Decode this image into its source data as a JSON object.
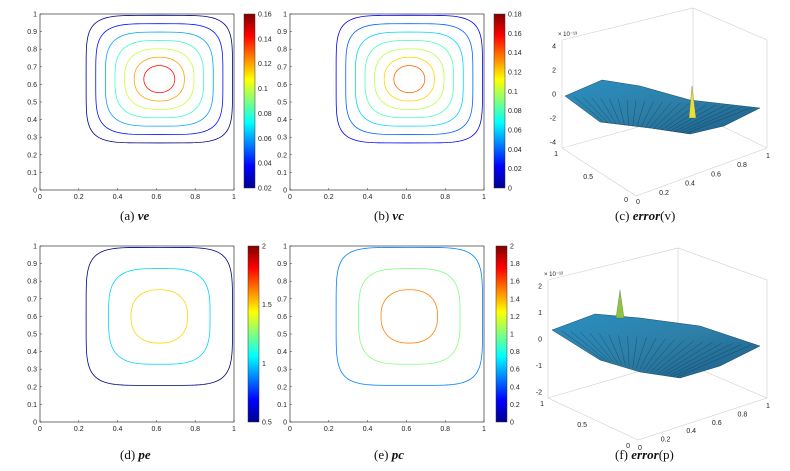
{
  "figure": {
    "panels": [
      {
        "id": "a",
        "type": "contour",
        "caption_label": "(a)",
        "caption_var": "ve",
        "caption_suffix": "",
        "x_ticks": [
          "0",
          "0.2",
          "0.4",
          "0.6",
          "0.8",
          "1"
        ],
        "y_ticks": [
          "0",
          "0.1",
          "0.2",
          "0.3",
          "0.4",
          "0.5",
          "0.6",
          "0.7",
          "0.8",
          "0.9",
          "1"
        ],
        "xlim": [
          0,
          1
        ],
        "ylim": [
          0,
          1
        ],
        "center": [
          0.615,
          0.63
        ],
        "levels": [
          0.02,
          0.04,
          0.06,
          0.08,
          0.1,
          0.12,
          0.14
        ],
        "colorbar": {
          "min": 0.02,
          "max": 0.16,
          "ticks": [
            "0.16",
            "0.14",
            "0.12",
            "0.1",
            "0.08",
            "0.06",
            "0.04",
            "0.02"
          ],
          "exponent": ""
        }
      },
      {
        "id": "b",
        "type": "contour",
        "caption_label": "(b)",
        "caption_var": "vc",
        "caption_suffix": "",
        "x_ticks": [
          "0",
          "0.2",
          "0.4",
          "0.6",
          "0.8",
          "1"
        ],
        "y_ticks": [
          "0",
          "0.1",
          "0.2",
          "0.3",
          "0.4",
          "0.5",
          "0.6",
          "0.7",
          "0.8",
          "0.9",
          "1"
        ],
        "xlim": [
          0,
          1
        ],
        "ylim": [
          0,
          1
        ],
        "center": [
          0.615,
          0.63
        ],
        "levels": [
          0.02,
          0.04,
          0.06,
          0.08,
          0.1,
          0.12,
          0.14
        ],
        "colorbar": {
          "min": 0,
          "max": 0.18,
          "ticks": [
            "0.18",
            "0.16",
            "0.14",
            "0.12",
            "0.1",
            "0.08",
            "0.06",
            "0.04",
            "0.02",
            "0"
          ],
          "exponent": ""
        }
      },
      {
        "id": "c",
        "type": "surface",
        "caption_label": "(c)",
        "caption_var": "error",
        "caption_suffix": "(v)",
        "z_ticks": [
          "4",
          "2",
          "0",
          "-2",
          "-4"
        ],
        "z_exponent": "× 10⁻¹³",
        "x_ticks": [
          "0",
          "0.2",
          "0.4",
          "0.6",
          "0.8",
          "1"
        ],
        "y_ticks": [
          "0",
          "0.5",
          "1"
        ],
        "zlim": [
          -4,
          4
        ]
      },
      {
        "id": "d",
        "type": "contour",
        "caption_label": "(d)",
        "caption_var": "pe",
        "caption_suffix": "",
        "x_ticks": [
          "0",
          "0.2",
          "0.4",
          "0.6",
          "0.8",
          "1"
        ],
        "y_ticks": [
          "0",
          "0.1",
          "0.2",
          "0.3",
          "0.4",
          "0.5",
          "0.6",
          "0.7",
          "0.8",
          "0.9",
          "1"
        ],
        "xlim": [
          0,
          1
        ],
        "ylim": [
          0,
          1
        ],
        "center": [
          0.615,
          0.6
        ],
        "levels": [
          0.5,
          1.0,
          1.5
        ],
        "colorbar": {
          "min": 0.5,
          "max": 2,
          "ticks": [
            "2",
            "1.5",
            "1",
            "0.5"
          ],
          "exponent": ""
        }
      },
      {
        "id": "e",
        "type": "contour",
        "caption_label": "(e)",
        "caption_var": "pc",
        "caption_suffix": "",
        "x_ticks": [
          "0",
          "0.2",
          "0.4",
          "0.6",
          "0.8",
          "1"
        ],
        "y_ticks": [
          "0",
          "0.1",
          "0.2",
          "0.3",
          "0.4",
          "0.5",
          "0.6",
          "0.7",
          "0.8",
          "0.9",
          "1"
        ],
        "xlim": [
          0,
          1
        ],
        "ylim": [
          0,
          1
        ],
        "center": [
          0.615,
          0.6
        ],
        "levels": [
          0.5,
          1.0,
          1.5
        ],
        "colorbar": {
          "min": 0,
          "max": 2,
          "ticks": [
            "2",
            "1.8",
            "1.6",
            "1.4",
            "1.2",
            "1",
            "0.8",
            "0.6",
            "0.4",
            "0.2",
            "0"
          ],
          "exponent": ""
        }
      },
      {
        "id": "f",
        "type": "surface",
        "caption_label": "(f)",
        "caption_var": "error",
        "caption_suffix": "(p)",
        "z_ticks": [
          "2",
          "1",
          "0",
          "-1",
          "-2"
        ],
        "z_exponent": "× 10⁻¹²",
        "x_ticks": [
          "0",
          "0.2",
          "0.4",
          "0.6",
          "0.8",
          "1"
        ],
        "y_ticks": [
          "0",
          "0.5",
          "1"
        ],
        "zlim": [
          -2,
          2
        ]
      }
    ]
  },
  "chart_data": [
    {
      "panel": "a",
      "type": "heatmap",
      "title": "ve",
      "xlabel": "",
      "ylabel": "",
      "xlim": [
        0,
        1
      ],
      "ylim": [
        0,
        1
      ],
      "contour_levels": [
        0.02,
        0.04,
        0.06,
        0.08,
        0.1,
        0.12,
        0.14
      ],
      "max_value": 0.16,
      "max_location": [
        0.62,
        0.63
      ],
      "colorbar_range": [
        0.02,
        0.16
      ]
    },
    {
      "panel": "b",
      "type": "heatmap",
      "title": "vc",
      "xlabel": "",
      "ylabel": "",
      "xlim": [
        0,
        1
      ],
      "ylim": [
        0,
        1
      ],
      "contour_levels": [
        0.02,
        0.04,
        0.06,
        0.08,
        0.1,
        0.12,
        0.14
      ],
      "max_value": 0.16,
      "max_location": [
        0.62,
        0.63
      ],
      "colorbar_range": [
        0,
        0.18
      ]
    },
    {
      "panel": "c",
      "type": "heatmap",
      "title": "error(v)",
      "zlim": [
        -4e-13,
        4e-13
      ],
      "x_range": [
        0,
        1
      ],
      "y_range": [
        0,
        1
      ]
    },
    {
      "panel": "d",
      "type": "heatmap",
      "title": "pe",
      "xlabel": "",
      "ylabel": "",
      "xlim": [
        0,
        1
      ],
      "ylim": [
        0,
        1
      ],
      "contour_levels": [
        0.5,
        1.0,
        1.5
      ],
      "colorbar_range": [
        0.5,
        2
      ]
    },
    {
      "panel": "e",
      "type": "heatmap",
      "title": "pc",
      "xlabel": "",
      "ylabel": "",
      "xlim": [
        0,
        1
      ],
      "ylim": [
        0,
        1
      ],
      "contour_levels": [
        0.5,
        1.0,
        1.5
      ],
      "colorbar_range": [
        0,
        2
      ]
    },
    {
      "panel": "f",
      "type": "heatmap",
      "title": "error(p)",
      "zlim": [
        -2e-12,
        2e-12
      ],
      "x_range": [
        0,
        1
      ],
      "y_range": [
        0,
        1
      ]
    }
  ]
}
